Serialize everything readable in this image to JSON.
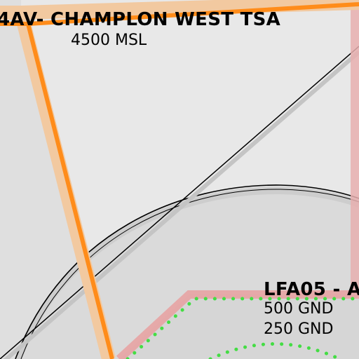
{
  "map": {
    "colors": {
      "background": "#e8e8e8",
      "tsa_fill": "#dcdcdc",
      "tsa_border": "#ff8c1a",
      "tsa_halo": "#f2c9a0",
      "lfa_border": "#e8a0a0",
      "lfa_dots": "#44dd44",
      "ctr_fill": "#d8d8d8",
      "line": "#000000"
    },
    "zones": [
      {
        "id": "champlon-west-tsa",
        "name": "4AV- CHAMPLON WEST TSA",
        "upper": "4500 MSL"
      },
      {
        "id": "lfa05",
        "name": "LFA05 - A",
        "upper": "500 GND",
        "lower": "250 GND"
      }
    ]
  }
}
